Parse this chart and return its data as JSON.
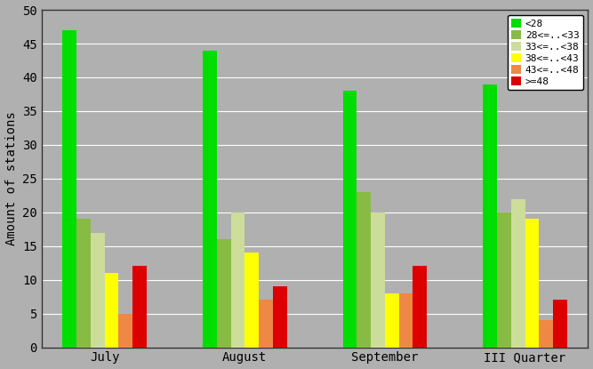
{
  "categories": [
    "July",
    "August",
    "September",
    "III Quarter"
  ],
  "series": [
    {
      "label": "<28",
      "color": "#00dd00",
      "values": [
        47,
        44,
        38,
        39
      ]
    },
    {
      "label": "28<=..<33",
      "color": "#88bb44",
      "values": [
        19,
        16,
        23,
        20
      ]
    },
    {
      "label": "33<=..<38",
      "color": "#ccdd99",
      "values": [
        17,
        20,
        20,
        22
      ]
    },
    {
      "label": "38<=..<43",
      "color": "#ffff00",
      "values": [
        11,
        14,
        8,
        19
      ]
    },
    {
      "label": "43<=..<48",
      "color": "#ee8844",
      "values": [
        5,
        7,
        8,
        4
      ]
    },
    {
      "label": ">=48",
      "color": "#dd0000",
      "values": [
        12,
        9,
        12,
        7
      ]
    }
  ],
  "ylabel": "Amount of stations",
  "ylim": [
    0,
    50
  ],
  "yticks": [
    0,
    5,
    10,
    15,
    20,
    25,
    30,
    35,
    40,
    45,
    50
  ],
  "background_color": "#b0b0b0",
  "plot_bg_color": "#b0b0b0",
  "grid_color": "#ffffff",
  "bar_width": 0.1,
  "legend_labels": [
    "<28",
    "28<=..<33",
    "33<=..<38",
    "38<=..<43",
    "43<=..<48",
    ">=48"
  ]
}
